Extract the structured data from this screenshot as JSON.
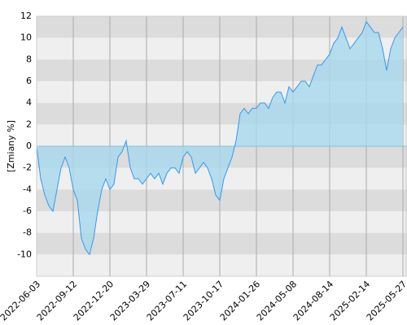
{
  "chart_data": {
    "type": "area",
    "y_label": "[Zmiany %]",
    "categories": [
      "2022-06-03",
      null,
      null,
      null,
      null,
      null,
      null,
      null,
      null,
      "2022-09-12",
      null,
      null,
      null,
      null,
      null,
      null,
      null,
      null,
      "2022-12-20",
      null,
      null,
      null,
      null,
      null,
      null,
      null,
      null,
      "2023-03-29",
      null,
      null,
      null,
      null,
      null,
      null,
      null,
      null,
      "2023-07-11",
      null,
      null,
      null,
      null,
      null,
      null,
      null,
      null,
      "2023-10-17",
      null,
      null,
      null,
      null,
      null,
      null,
      null,
      null,
      "2024-01-26",
      null,
      null,
      null,
      null,
      null,
      null,
      null,
      null,
      "2024-05-08",
      null,
      null,
      null,
      null,
      null,
      null,
      null,
      null,
      "2024-08-14",
      null,
      null,
      null,
      null,
      null,
      null,
      null,
      null,
      "2025-02-14",
      null,
      null,
      null,
      null,
      null,
      null,
      null,
      null,
      "2025-05-27"
    ],
    "values": [
      0,
      -3,
      -4.5,
      -5.5,
      -6,
      -4,
      -2,
      -1,
      -2,
      -4,
      -5,
      -8.5,
      -9.5,
      -10,
      -8.5,
      -6,
      -4,
      -3,
      -4,
      -3.5,
      -1,
      -0.5,
      0.5,
      -2,
      -3,
      -3,
      -3.5,
      -3,
      -2.5,
      -3,
      -2.5,
      -3.5,
      -2.5,
      -2,
      -2,
      -2.5,
      -1,
      -0.5,
      -1,
      -2.5,
      -2,
      -1.5,
      -2,
      -3,
      -4.5,
      -5,
      -3,
      -2,
      -1,
      0.5,
      3,
      3.5,
      3,
      3.5,
      3.5,
      4,
      4,
      3.5,
      4.5,
      5,
      5,
      4,
      5.5,
      5,
      5.5,
      6,
      6,
      5.5,
      6.5,
      7.5,
      7.5,
      8,
      8.5,
      9.5,
      10,
      11,
      10,
      9,
      9.5,
      10,
      10.5,
      11.5,
      11,
      10.5,
      10.5,
      9,
      7,
      9,
      10,
      10.5,
      11
    ],
    "color": "#3399ee",
    "fill_color": "#a8d8ec",
    "ylim": [
      -12,
      12
    ],
    "yticks": [
      -10,
      -8,
      -6,
      -4,
      -2,
      0,
      2,
      4,
      6,
      8,
      10,
      12
    ],
    "band_colors": [
      "#dcdcdc",
      "#efefef"
    ],
    "grid": true
  }
}
